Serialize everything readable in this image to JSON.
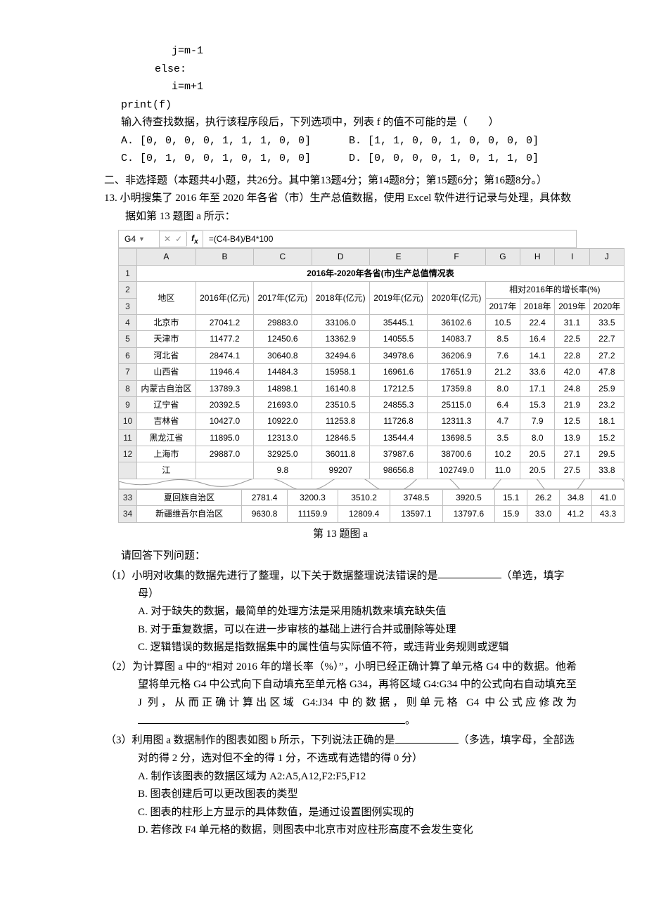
{
  "code": {
    "l1": "j=m-1",
    "l2": "else:",
    "l3": "i=m+1",
    "l4": "print(f)"
  },
  "q12": {
    "stem": "输入待查找数据，执行该程序段后，下列选项中，列表 f 的值不可能的是（　　）",
    "A": "A. [0, 0, 0, 0, 1, 1, 1, 0, 0]",
    "B": "B. [1, 1, 0, 0, 1, 0, 0, 0, 0]",
    "C": "C. [0, 1, 0, 0, 1, 0, 1, 0, 0]",
    "D": "D. [0, 0, 0, 0, 1, 0, 1, 1, 0]"
  },
  "section2": "二、非选择题（本题共4小题，共26分。其中第13题4分；第14题8分；第15题6分；第16题8分。）",
  "q13": {
    "stem": "13. 小明搜集了 2016 年至 2020 年各省（市）生产总值数据，使用 Excel 软件进行记录与处理，具体数据如第 13 题图 a 所示：",
    "caption": "第 13 题图 a",
    "after_table": "请回答下列问题：",
    "p1": {
      "stem": "（1）小明对收集的数据先进行了整理，以下关于数据整理说法错误的是",
      "tail": "（单选，填字母）",
      "A": "A. 对于缺失的数据，最简单的处理方法是采用随机数来填充缺失值",
      "B": "B. 对于重复数据，可以在进一步审核的基础上进行合并或删除等处理",
      "C": "C. 逻辑错误的数据是指数据集中的属性值与实际值不符，或违背业务规则或逻辑"
    },
    "p2": "（2）为计算图 a 中的“相对 2016 年的增长率（%）”，小明已经正确计算了单元格 G4 中的数据。他希望将单元格 G4 中公式向下自动填充至单元格 G34，再将区域 G4:G34 中的公式向右自动填充至 J 列，从而正确计算出区域 G4:J34 中的数据，则单元格 G4 中公式应修改为 ",
    "p2_tail": "。",
    "p3": {
      "stem": "（3）利用图 a 数据制作的图表如图 b 所示，下列说法正确的是",
      "tail": "（多选，填字母，全部选对的得 2 分，选对但不全的得 1 分，不选或有选错的得 0 分）",
      "A": "A. 制作该图表的数据区域为 A2:A5,A12,F2:F5,F12",
      "B": "B. 图表创建后可以更改图表的类型",
      "C": "C. 图表的柱形上方显示的具体数值，是通过设置图例实现的",
      "D": "D. 若修改 F4 单元格的数据，则图表中北京市对应柱形高度不会发生变化"
    }
  },
  "excel": {
    "cell_ref": "G4",
    "formula": "=(C4-B4)/B4*100",
    "cols": [
      "A",
      "B",
      "C",
      "D",
      "E",
      "F",
      "G",
      "H",
      "I",
      "J"
    ],
    "title": "2016年-2020年各省(市)生产总值情况表",
    "h_region": "地区",
    "h_years": [
      "2016年(亿元)",
      "2017年(亿元)",
      "2018年(亿元)",
      "2019年(亿元)",
      "2020年(亿元)"
    ],
    "h_growth": "相对2016年的增长率(%)",
    "h_growth_years": [
      "2017年",
      "2018年",
      "2019年",
      "2020年"
    ],
    "rows_top": [
      {
        "n": "4",
        "region": "北京市",
        "v": [
          "27041.2",
          "29883.0",
          "33106.0",
          "35445.1",
          "36102.6",
          "10.5",
          "22.4",
          "31.1",
          "33.5"
        ]
      },
      {
        "n": "5",
        "region": "天津市",
        "v": [
          "11477.2",
          "12450.6",
          "13362.9",
          "14055.5",
          "14083.7",
          "8.5",
          "16.4",
          "22.5",
          "22.7"
        ]
      },
      {
        "n": "6",
        "region": "河北省",
        "v": [
          "28474.1",
          "30640.8",
          "32494.6",
          "34978.6",
          "36206.9",
          "7.6",
          "14.1",
          "22.8",
          "27.2"
        ]
      },
      {
        "n": "7",
        "region": "山西省",
        "v": [
          "11946.4",
          "14484.3",
          "15958.1",
          "16961.6",
          "17651.9",
          "21.2",
          "33.6",
          "42.0",
          "47.8"
        ]
      },
      {
        "n": "8",
        "region": "内蒙古自治区",
        "v": [
          "13789.3",
          "14898.1",
          "16140.8",
          "17212.5",
          "17359.8",
          "8.0",
          "17.1",
          "24.8",
          "25.9"
        ]
      },
      {
        "n": "9",
        "region": "辽宁省",
        "v": [
          "20392.5",
          "21693.0",
          "23510.5",
          "24855.3",
          "25115.0",
          "6.4",
          "15.3",
          "21.9",
          "23.2"
        ]
      },
      {
        "n": "10",
        "region": "吉林省",
        "v": [
          "10427.0",
          "10922.0",
          "11253.8",
          "11726.8",
          "12311.3",
          "4.7",
          "7.9",
          "12.5",
          "18.1"
        ]
      },
      {
        "n": "11",
        "region": "黑龙江省",
        "v": [
          "11895.0",
          "12313.0",
          "12846.5",
          "13544.4",
          "13698.5",
          "3.5",
          "8.0",
          "13.9",
          "15.2"
        ]
      },
      {
        "n": "12",
        "region": "上海市",
        "v": [
          "29887.0",
          "32925.0",
          "36011.8",
          "37987.6",
          "38700.6",
          "10.2",
          "20.5",
          "27.1",
          "29.5"
        ]
      }
    ],
    "row_cut": {
      "n": "",
      "region": "江",
      "v": [
        "",
        "9.8",
        "99207",
        "98656.8",
        "102749.0",
        "11.0",
        "20.5",
        "27.5",
        "33.8"
      ]
    },
    "rows_bot": [
      {
        "n": "33",
        "region": "夏回族自治区",
        "v": [
          "2781.4",
          "3200.3",
          "3510.2",
          "3748.5",
          "3920.5",
          "15.1",
          "26.2",
          "34.8",
          "41.0"
        ]
      },
      {
        "n": "34",
        "region": "新疆维吾尔自治区",
        "v": [
          "9630.8",
          "11159.9",
          "12809.4",
          "13597.1",
          "13797.6",
          "15.9",
          "33.0",
          "41.2",
          "43.3"
        ]
      }
    ]
  }
}
